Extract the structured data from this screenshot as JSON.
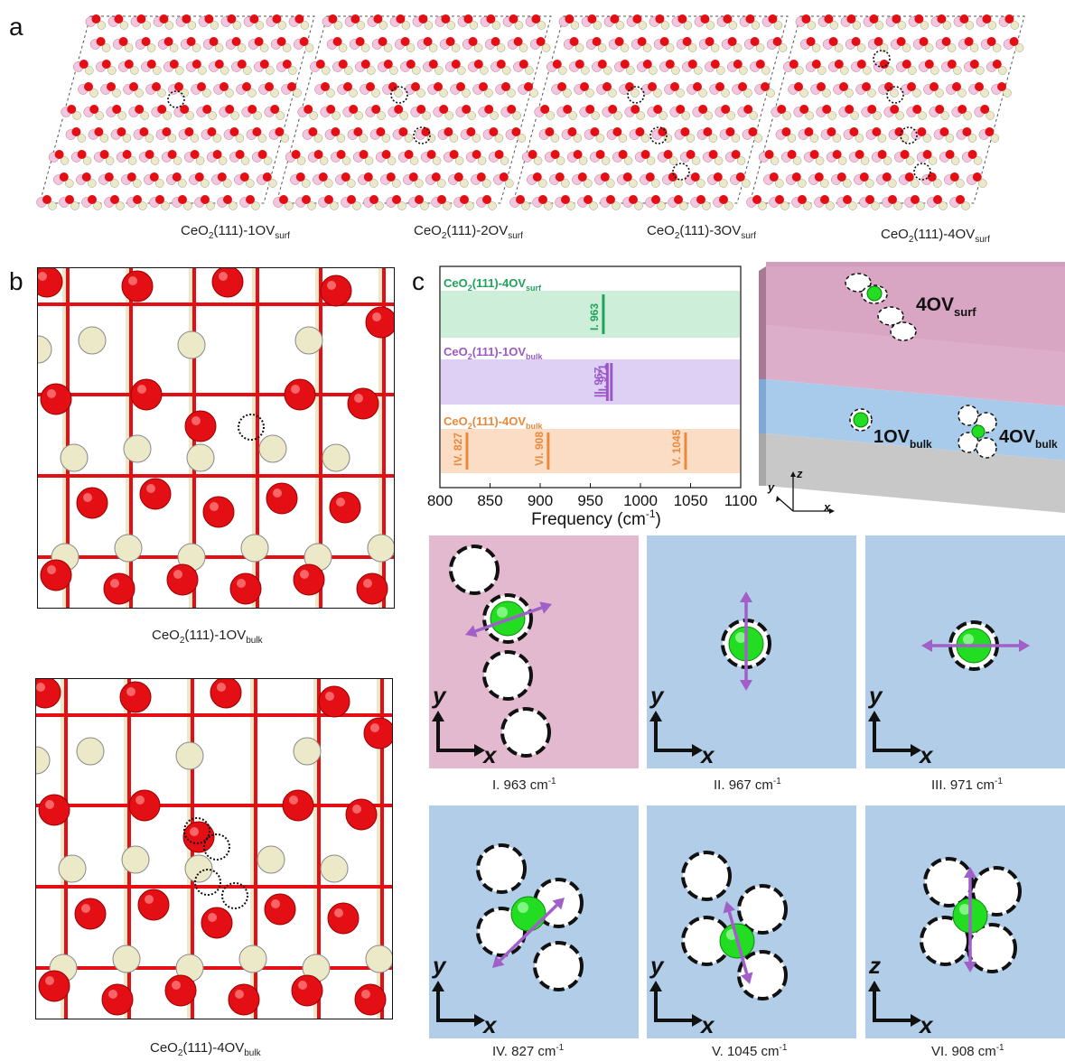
{
  "panel_letters": {
    "a": "a",
    "b": "b",
    "c": "c"
  },
  "panel_a": {
    "captions": [
      {
        "main": "CeO",
        "sub1": "2",
        "mid": "(111)-1OV",
        "sub2": "surf"
      },
      {
        "main": "CeO",
        "sub1": "2",
        "mid": "(111)-2OV",
        "sub2": "surf"
      },
      {
        "main": "CeO",
        "sub1": "2",
        "mid": "(111)-3OV",
        "sub2": "surf"
      },
      {
        "main": "CeO",
        "sub1": "2",
        "mid": "(111)-4OV",
        "sub2": "surf"
      }
    ]
  },
  "panel_b": {
    "top_caption": {
      "main": "CeO",
      "sub1": "2",
      "mid": "(111)-1OV",
      "sub2": "bulk"
    },
    "bottom_caption": {
      "main": "CeO",
      "sub1": "2",
      "mid": "(111)-4OV",
      "sub2": "bulk"
    }
  },
  "chart_data": {
    "type": "bar",
    "x_unit_label": "Frequency (cm",
    "x_unit_sup": "-1",
    "x_unit_end": ")",
    "xlim": [
      800,
      1100
    ],
    "xticks": [
      800,
      850,
      900,
      950,
      1000,
      1050,
      1100
    ],
    "bands": [
      {
        "name_main": "CeO",
        "name_sub1": "2",
        "name_mid": "(111)-4OV",
        "name_sub2": "surf",
        "color": "#1fa35a",
        "fill": "#cdeed8",
        "lines": [
          {
            "value": 963,
            "label": "I. 963"
          }
        ]
      },
      {
        "name_main": "CeO",
        "name_sub1": "2",
        "name_mid": "(111)-1OV",
        "name_sub2": "bulk",
        "color": "#9b59c8",
        "fill": "#ddd0f4",
        "lines": [
          {
            "value": 967,
            "label": "II. 967"
          },
          {
            "value": 971,
            "label": "III. 971"
          }
        ]
      },
      {
        "name_main": "CeO",
        "name_sub1": "2",
        "name_mid": "(111)-4OV",
        "name_sub2": "bulk",
        "color": "#e8893c",
        "fill": "#fbdcc4",
        "lines": [
          {
            "value": 827,
            "label": "IV. 827"
          },
          {
            "value": 908,
            "label": "VI. 908"
          },
          {
            "value": 1045,
            "label": "V. 1045"
          }
        ]
      }
    ]
  },
  "slab": {
    "surf_label": "4OV",
    "surf_sub": "surf",
    "bulk1_label": "1OV",
    "bulk1_sub": "bulk",
    "bulk4_label": "4OV",
    "bulk4_sub": "bulk",
    "axis_x": "x",
    "axis_y": "y",
    "axis_z": "z"
  },
  "modes": [
    {
      "roman": "I.",
      "freq": "963",
      "unit": "cm",
      "sup": "-1",
      "bg": "#e3b9cf",
      "axis_v": "y",
      "axis_h": "x"
    },
    {
      "roman": "II.",
      "freq": "967",
      "unit": "cm",
      "sup": "-1",
      "bg": "#b2cde8",
      "axis_v": "y",
      "axis_h": "x"
    },
    {
      "roman": "III.",
      "freq": "971",
      "unit": "cm",
      "sup": "-1",
      "bg": "#b2cde8",
      "axis_v": "y",
      "axis_h": "x"
    },
    {
      "roman": "IV.",
      "freq": "827",
      "unit": "cm",
      "sup": "-1",
      "bg": "#b2cde8",
      "axis_v": "y",
      "axis_h": "x"
    },
    {
      "roman": "V.",
      "freq": "1045",
      "unit": "cm",
      "sup": "-1",
      "bg": "#b2cde8",
      "axis_v": "y",
      "axis_h": "x"
    },
    {
      "roman": "VI.",
      "freq": "908",
      "unit": "cm",
      "sup": "-1",
      "bg": "#b2cde8",
      "axis_v": "z",
      "axis_h": "x"
    }
  ],
  "colors": {
    "oxygen": "#e30f14",
    "cerium": "#ece9c8",
    "hydrogen": "#f2c6e0",
    "vacancy": "#111111",
    "arrow": "#a060c8",
    "atom_green": "#22dd22"
  }
}
